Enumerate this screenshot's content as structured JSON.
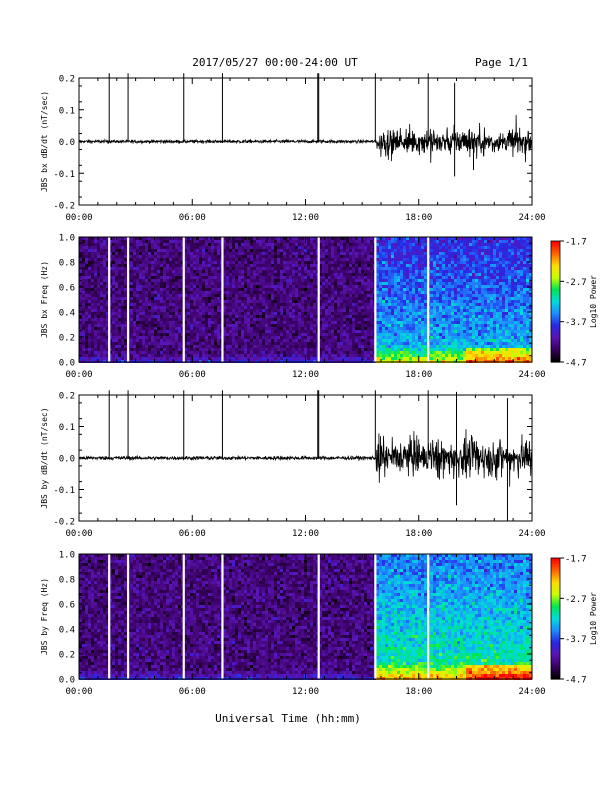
{
  "header": {
    "title": "2017/05/27  00:00-24:00 UT",
    "page": "Page 1/1"
  },
  "xlabel": "Universal Time (hh:mm)",
  "x_ticks": [
    "00:00",
    "06:00",
    "12:00",
    "18:00",
    "24:00"
  ],
  "colorbar": {
    "label": "Log10 Power",
    "ticks": [
      "-1.7",
      "-2.7",
      "-3.7",
      "-4.7"
    ],
    "range": [
      -4.7,
      -1.7
    ],
    "colormap": [
      "#000000",
      "#3a0060",
      "#5a14b4",
      "#2828e6",
      "#1e8cff",
      "#00dcdc",
      "#00e650",
      "#c8ff00",
      "#ffdc00",
      "#ff6400",
      "#ff0000"
    ]
  },
  "chart_data": [
    {
      "type": "line",
      "title": "",
      "ylabel": "JBS bx dB/dt (nT/sec)",
      "xlim": [
        0,
        24
      ],
      "ylim": [
        -0.2,
        0.2
      ],
      "y_ticks": [
        "0.2",
        "0.1",
        "0.0",
        "-0.1",
        "-0.2"
      ],
      "x_unit": "hours UT",
      "noise_segments": [
        {
          "x": [
            0,
            15.75
          ],
          "amplitude": 0.005
        },
        {
          "x": [
            15.75,
            24
          ],
          "amplitude": 0.04
        }
      ],
      "spikes": [
        {
          "x": 1.6,
          "y": [
            -0.003,
            0.215
          ]
        },
        {
          "x": 2.6,
          "y": [
            -0.003,
            0.215
          ]
        },
        {
          "x": 5.55,
          "y": [
            -0.003,
            0.215
          ]
        },
        {
          "x": 7.6,
          "y": [
            -0.003,
            0.215
          ]
        },
        {
          "x": 12.65,
          "y": [
            -0.003,
            0.215
          ]
        },
        {
          "x": 12.7,
          "y": [
            -0.003,
            0.215
          ]
        },
        {
          "x": 15.7,
          "y": [
            -0.003,
            0.215
          ]
        },
        {
          "x": 18.5,
          "y": [
            -0.003,
            0.215
          ]
        },
        {
          "x": 19.9,
          "y": [
            -0.11,
            0.185
          ]
        },
        {
          "x": 20.9,
          "y": [
            -0.09,
            0.01
          ]
        }
      ]
    },
    {
      "type": "heatmap",
      "title": "",
      "ylabel": "JBS bx Freq (Hz)",
      "xlim": [
        0,
        24
      ],
      "ylim": [
        0.0,
        1.0
      ],
      "y_ticks": [
        "1.0",
        "0.8",
        "0.6",
        "0.4",
        "0.2",
        "0.0"
      ],
      "value_range": [
        -4.7,
        -1.7
      ],
      "background_level": -4.3,
      "active_from_hour": 15.7,
      "active_level": -3.3,
      "data_gaps_hours": [
        1.6,
        2.6,
        5.55,
        7.6,
        12.7,
        15.7,
        18.5
      ]
    },
    {
      "type": "line",
      "title": "",
      "ylabel": "JBS by dB/dt (nT/sec)",
      "xlim": [
        0,
        24
      ],
      "ylim": [
        -0.2,
        0.2
      ],
      "y_ticks": [
        "0.2",
        "0.1",
        "0.0",
        "-0.1",
        "-0.2"
      ],
      "x_unit": "hours UT",
      "noise_segments": [
        {
          "x": [
            0,
            15.75
          ],
          "amplitude": 0.006
        },
        {
          "x": [
            15.75,
            24
          ],
          "amplitude": 0.06
        }
      ],
      "spikes": [
        {
          "x": 1.6,
          "y": [
            -0.003,
            0.215
          ]
        },
        {
          "x": 2.6,
          "y": [
            -0.003,
            0.215
          ]
        },
        {
          "x": 5.55,
          "y": [
            -0.003,
            0.215
          ]
        },
        {
          "x": 7.6,
          "y": [
            -0.003,
            0.215
          ]
        },
        {
          "x": 12.65,
          "y": [
            -0.003,
            0.215
          ]
        },
        {
          "x": 12.7,
          "y": [
            -0.003,
            0.215
          ]
        },
        {
          "x": 15.7,
          "y": [
            -0.003,
            0.215
          ]
        },
        {
          "x": 18.5,
          "y": [
            -0.003,
            0.215
          ]
        },
        {
          "x": 20.0,
          "y": [
            -0.15,
            0.21
          ]
        },
        {
          "x": 22.7,
          "y": [
            -0.2,
            0.19
          ]
        }
      ]
    },
    {
      "type": "heatmap",
      "title": "",
      "ylabel": "JBS by Freq (Hz)",
      "xlim": [
        0,
        24
      ],
      "ylim": [
        0.0,
        1.0
      ],
      "y_ticks": [
        "1.0",
        "0.8",
        "0.6",
        "0.4",
        "0.2",
        "0.0"
      ],
      "value_range": [
        -4.7,
        -1.7
      ],
      "background_level": -4.3,
      "active_from_hour": 15.7,
      "active_level": -3.0,
      "data_gaps_hours": [
        1.6,
        2.6,
        5.55,
        7.6,
        12.7,
        15.7,
        18.5
      ]
    }
  ]
}
